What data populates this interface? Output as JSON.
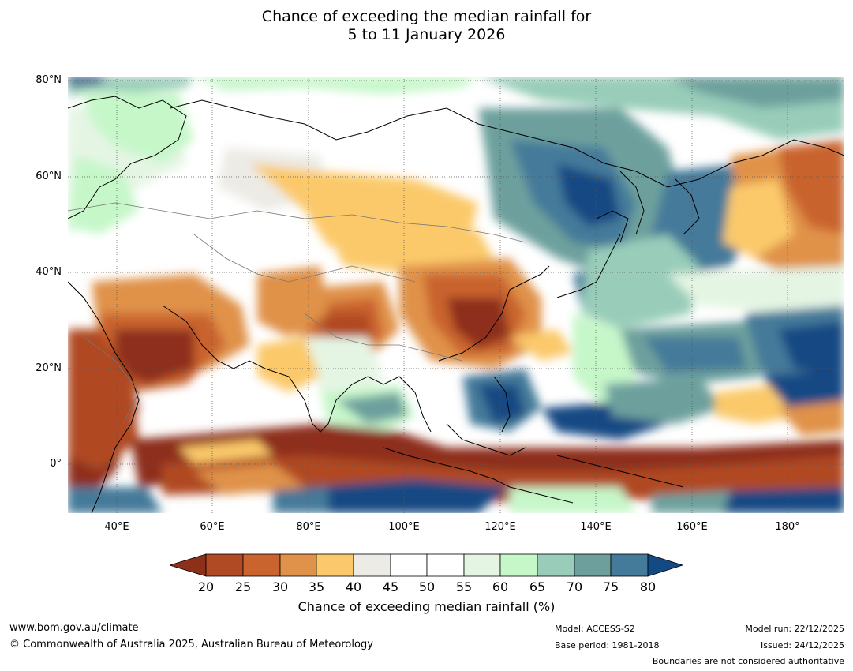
{
  "title": {
    "line1": "Chance of exceeding the median rainfall for",
    "line2": "5 to 11 January 2026"
  },
  "map": {
    "lat_labels": [
      "80°N",
      "60°N",
      "40°N",
      "20°N",
      "0°"
    ],
    "lon_labels": [
      "40°E",
      "60°E",
      "80°E",
      "100°E",
      "120°E",
      "140°E",
      "160°E",
      "180°"
    ],
    "extent": {
      "lon_min": 30,
      "lon_max": 192,
      "lat_min": -10,
      "lat_max": 80
    },
    "colors": {
      "c20": "#8e2f1a",
      "c25": "#b04a24",
      "c30": "#c9642f",
      "c35": "#e0924a",
      "c40": "#fbc96b",
      "c45": "#ecebe6",
      "c50": "#ffffff",
      "c55": "#ffffff",
      "c60": "#e5f5e4",
      "c65": "#c6f7c9",
      "c70": "#99cdb9",
      "c75": "#6da09d",
      "c80": "#447a9a",
      "c85": "#134a83"
    }
  },
  "colorbar": {
    "ticks": [
      "20",
      "25",
      "30",
      "35",
      "40",
      "45",
      "50",
      "55",
      "60",
      "65",
      "70",
      "75",
      "80"
    ],
    "label": "Chance of exceeding median rainfall (%)"
  },
  "footer": {
    "website": "www.bom.gov.au/climate",
    "copyright": "© Commonwealth of Australia 2025, Australian Bureau of Meteorology",
    "model": "Model: ACCESS-S2",
    "base_period": "Base period: 1981-2018",
    "model_run": "Model run: 22/12/2025",
    "issued": "Issued: 24/12/2025",
    "disclaimer": "Boundaries are not considered authoritative"
  }
}
